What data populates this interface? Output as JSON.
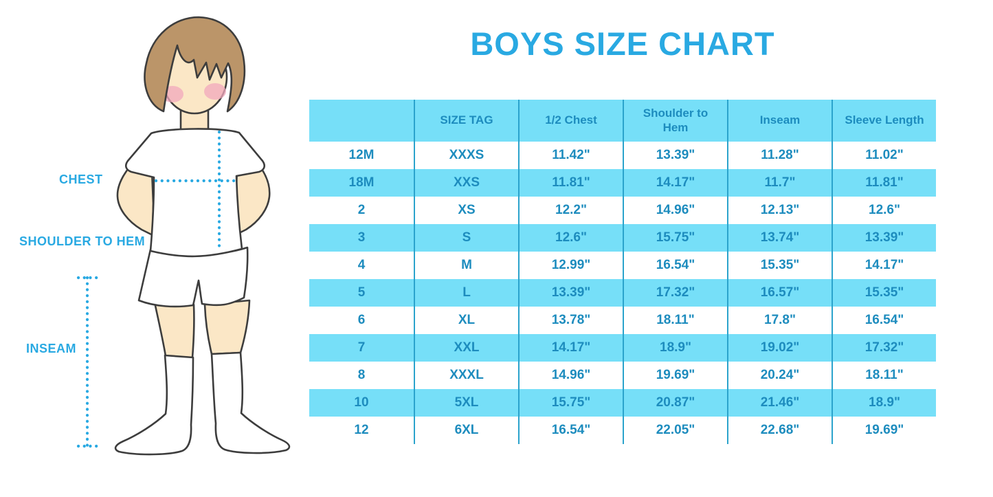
{
  "title": "BOYS SIZE CHART",
  "figure": {
    "description": "cartoon boy with hands on hips wearing white t-shirt, white shorts and knee-high white socks",
    "labels": {
      "chest": "CHEST",
      "shoulder_to_hem": "SHOULDER TO HEM",
      "inseam": "INSEAM"
    }
  },
  "chart_data": {
    "type": "table",
    "title": "BOYS SIZE CHART",
    "columns": [
      "",
      "SIZE TAG",
      "1/2 Chest",
      "Shoulder to Hem",
      "Inseam",
      "Sleeve Length"
    ],
    "rows": [
      [
        "12M",
        "XXXS",
        "11.42\"",
        "13.39\"",
        "11.28\"",
        "11.02\""
      ],
      [
        "18M",
        "XXS",
        "11.81\"",
        "14.17\"",
        "11.7\"",
        "11.81\""
      ],
      [
        "2",
        "XS",
        "12.2\"",
        "14.96\"",
        "12.13\"",
        "12.6\""
      ],
      [
        "3",
        "S",
        "12.6\"",
        "15.75\"",
        "13.74\"",
        "13.39\""
      ],
      [
        "4",
        "M",
        "12.99\"",
        "16.54\"",
        "15.35\"",
        "14.17\""
      ],
      [
        "5",
        "L",
        "13.39\"",
        "17.32\"",
        "16.57\"",
        "15.35\""
      ],
      [
        "6",
        "XL",
        "13.78\"",
        "18.11\"",
        "17.8\"",
        "16.54\""
      ],
      [
        "7",
        "XXL",
        "14.17\"",
        "18.9\"",
        "19.02\"",
        "17.32\""
      ],
      [
        "8",
        "XXXL",
        "14.96\"",
        "19.69\"",
        "20.24\"",
        "18.11\""
      ],
      [
        "10",
        "5XL",
        "15.75\"",
        "20.87\"",
        "21.46\"",
        "18.9\""
      ],
      [
        "12",
        "6XL",
        "16.54\"",
        "22.05\"",
        "22.68\"",
        "19.69\""
      ]
    ],
    "layout": {
      "striping": "header and every second data row filled light blue, others white",
      "grid": "vertical column separators only, no horizontal lines",
      "legend_position": "none"
    }
  },
  "colors": {
    "accent_blue": "#29a9e2",
    "row_fill": "#76dff8",
    "cell_text": "#1d8cbe",
    "grid_line": "#2ba3cc",
    "skin": "#fbe7c6",
    "hair": "#bb9569",
    "blush": "#f2a8bc",
    "outline": "#3d3d3d"
  }
}
